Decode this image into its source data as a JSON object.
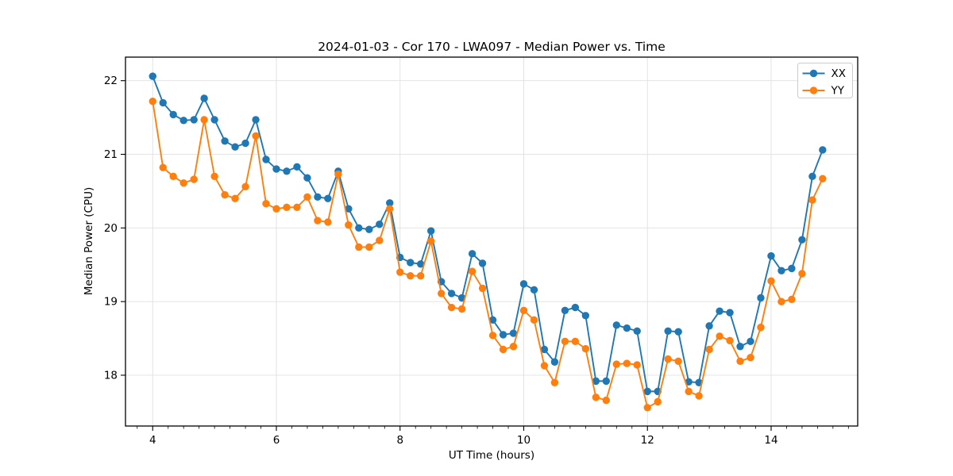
{
  "figure": {
    "background": "#ffffff"
  },
  "chart_data": {
    "type": "line",
    "title": "2024-01-03 - Cor 170 - LWA097 - Median Power vs. Time",
    "xlabel": "UT Time (hours)",
    "ylabel": "Median Power (CPU)",
    "x": [
      4.0,
      4.167,
      4.333,
      4.5,
      4.667,
      4.833,
      5.0,
      5.167,
      5.333,
      5.5,
      5.667,
      5.833,
      6.0,
      6.167,
      6.333,
      6.5,
      6.667,
      6.833,
      7.0,
      7.167,
      7.333,
      7.5,
      7.667,
      7.833,
      8.0,
      8.167,
      8.333,
      8.5,
      8.667,
      8.833,
      9.0,
      9.167,
      9.333,
      9.5,
      9.667,
      9.833,
      10.0,
      10.167,
      10.333,
      10.5,
      10.667,
      10.833,
      11.0,
      11.167,
      11.333,
      11.5,
      11.667,
      11.833,
      12.0,
      12.167,
      12.333,
      12.5,
      12.667,
      12.833,
      13.0,
      13.167,
      13.333,
      13.5,
      13.667,
      13.833,
      14.0,
      14.167,
      14.333,
      14.5,
      14.667,
      14.833
    ],
    "series": [
      {
        "name": "XX",
        "color": "#1f77b4",
        "marker": "circle",
        "values": [
          22.06,
          21.7,
          21.54,
          21.46,
          21.47,
          21.76,
          21.47,
          21.18,
          21.1,
          21.15,
          21.47,
          20.93,
          20.8,
          20.77,
          20.83,
          20.68,
          20.42,
          20.4,
          20.77,
          20.26,
          20.0,
          19.98,
          20.05,
          20.34,
          19.6,
          19.53,
          19.51,
          19.96,
          19.27,
          19.11,
          19.05,
          19.65,
          19.52,
          18.75,
          18.55,
          18.57,
          19.24,
          19.16,
          18.35,
          18.18,
          18.88,
          18.92,
          18.81,
          17.92,
          17.92,
          18.68,
          18.64,
          18.6,
          17.78,
          17.78,
          18.6,
          18.59,
          17.91,
          17.9,
          18.67,
          18.87,
          18.85,
          18.39,
          18.46,
          19.05,
          19.62,
          19.42,
          19.45,
          19.84,
          20.7,
          21.06
        ]
      },
      {
        "name": "YY",
        "color": "#ff7f0e",
        "marker": "circle",
        "values": [
          21.72,
          20.82,
          20.7,
          20.61,
          20.66,
          21.47,
          20.7,
          20.45,
          20.4,
          20.56,
          21.25,
          20.33,
          20.26,
          20.28,
          20.28,
          20.42,
          20.1,
          20.08,
          20.73,
          20.04,
          19.74,
          19.74,
          19.83,
          20.26,
          19.4,
          19.35,
          19.35,
          19.82,
          19.11,
          18.92,
          18.9,
          19.41,
          19.18,
          18.54,
          18.35,
          18.39,
          18.88,
          18.75,
          18.13,
          17.9,
          18.46,
          18.46,
          18.36,
          17.7,
          17.66,
          18.15,
          18.16,
          18.14,
          17.56,
          17.64,
          18.22,
          18.19,
          17.78,
          17.72,
          18.35,
          18.53,
          18.47,
          18.19,
          18.24,
          18.65,
          19.28,
          19.0,
          19.03,
          19.38,
          20.38,
          20.67
        ]
      }
    ],
    "xlim": [
      3.56,
      15.4
    ],
    "ylim": [
      17.31,
      22.32
    ],
    "xticks": [
      4,
      6,
      8,
      10,
      12,
      14
    ],
    "yticks": [
      18,
      19,
      20,
      21,
      22
    ],
    "x_minor_tick_step": 0.25,
    "grid": true,
    "grid_color": "#e0e0e0",
    "legend": {
      "position": "top-right",
      "entries": [
        "XX",
        "YY"
      ]
    }
  }
}
